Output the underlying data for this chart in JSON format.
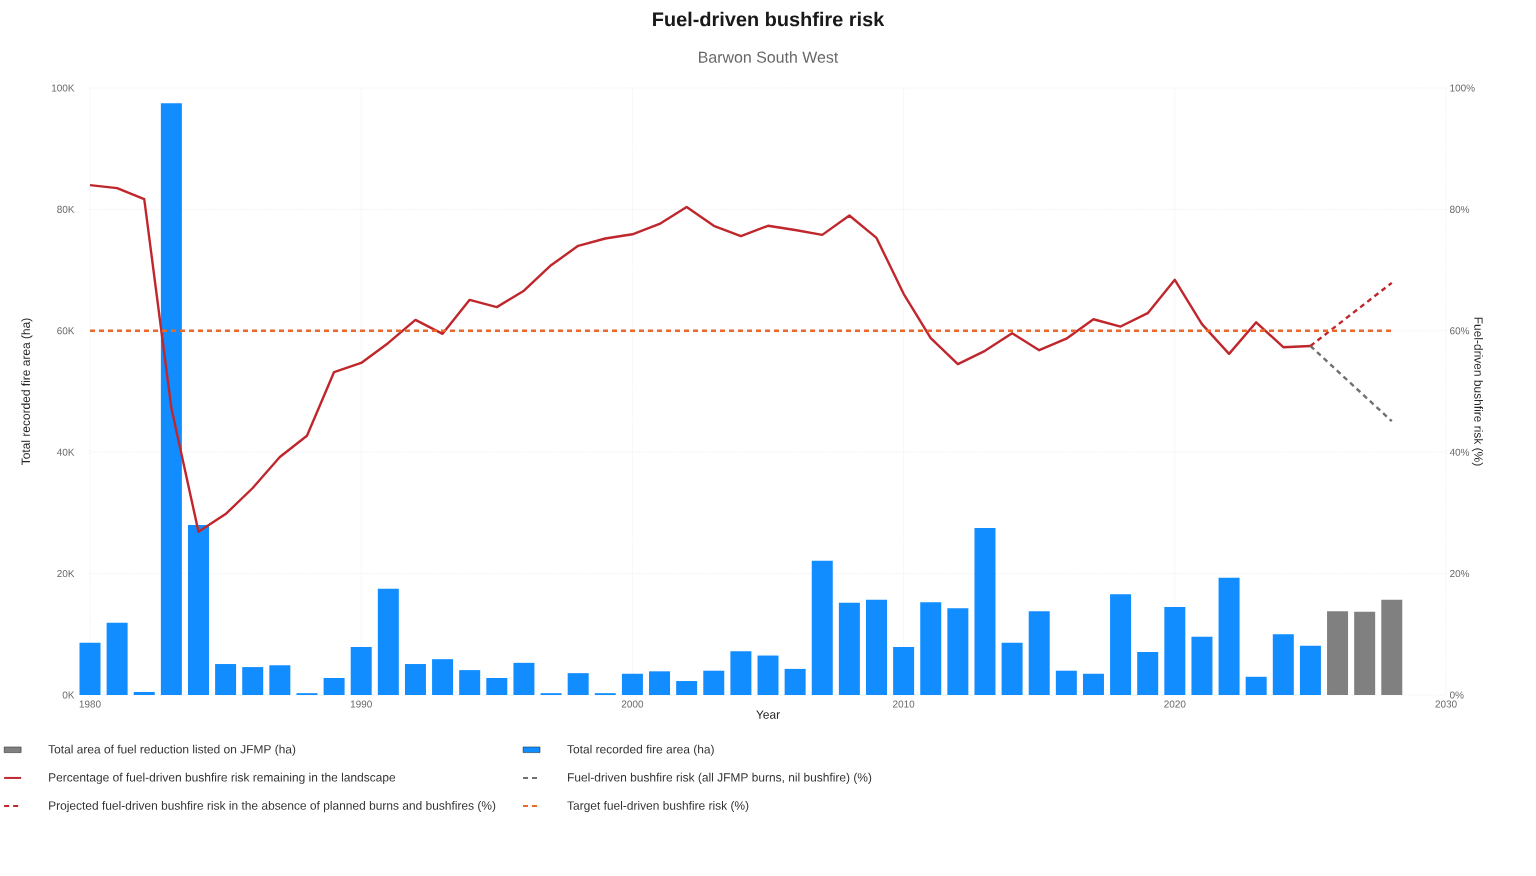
{
  "chart_data": {
    "type": "bar",
    "title": "Fuel-driven bushfire risk",
    "subtitle": "Barwon South West",
    "xlabel": "Year",
    "ylabel": "Total recorded fire area (ha)",
    "y2label": "Fuel-driven bushfire risk (%)",
    "xlim": [
      1980,
      2030
    ],
    "xticks": [
      1980,
      1990,
      2000,
      2010,
      2020,
      2030
    ],
    "ylim": [
      0,
      100000
    ],
    "yticks": [
      {
        "value": 0,
        "label": "0K"
      },
      {
        "value": 20000,
        "label": "20K"
      },
      {
        "value": 40000,
        "label": "40K"
      },
      {
        "value": 60000,
        "label": "60K"
      },
      {
        "value": 80000,
        "label": "80K"
      },
      {
        "value": 100000,
        "label": "100K"
      }
    ],
    "y2lim": [
      0,
      100
    ],
    "y2ticks": [
      {
        "value": 0,
        "label": "0%"
      },
      {
        "value": 20,
        "label": "20%"
      },
      {
        "value": 40,
        "label": "40%"
      },
      {
        "value": 60,
        "label": "60%"
      },
      {
        "value": 80,
        "label": "80%"
      },
      {
        "value": 100,
        "label": "100%"
      }
    ],
    "grid": true,
    "legend": "bottom",
    "series": [
      {
        "name": "Total area of fuel reduction listed on JFMP (ha)",
        "color": "#808080",
        "x": [
          2026,
          2027,
          2028
        ],
        "values": [
          13800,
          13700,
          15700
        ]
      },
      {
        "name": "Total recorded fire area (ha)",
        "color": "#118dff",
        "x": [
          1980,
          1981,
          1982,
          1983,
          1984,
          1985,
          1986,
          1987,
          1988,
          1989,
          1990,
          1991,
          1992,
          1993,
          1994,
          1995,
          1996,
          1997,
          1998,
          1999,
          2000,
          2001,
          2002,
          2003,
          2004,
          2005,
          2006,
          2007,
          2008,
          2009,
          2010,
          2011,
          2012,
          2013,
          2014,
          2015,
          2016,
          2017,
          2018,
          2019,
          2020,
          2021,
          2022,
          2023,
          2024,
          2025
        ],
        "values": [
          8600,
          11900,
          500,
          97500,
          28000,
          5100,
          4600,
          4900,
          300,
          2800,
          7900,
          17500,
          5100,
          5900,
          4100,
          2800,
          5300,
          300,
          3600,
          300,
          3500,
          3900,
          2300,
          4000,
          7200,
          6500,
          4300,
          22100,
          15200,
          15700,
          7900,
          15300,
          14300,
          27500,
          8600,
          13800,
          4000,
          3500,
          16600,
          7100,
          14500,
          9600,
          19300,
          3000,
          10000,
          8100
        ]
      },
      {
        "name": "Percentage of fuel-driven bushfire risk remaining in the landscape",
        "type": "line",
        "axis": "y2",
        "color": "#c0272d",
        "line_style": "solid",
        "x": [
          1980,
          1981,
          1982,
          1983,
          1984,
          1985,
          1986,
          1987,
          1988,
          1989,
          1990,
          1991,
          1992,
          1993,
          1994,
          1995,
          1996,
          1997,
          1998,
          1999,
          2000,
          2001,
          2002,
          2003,
          2004,
          2005,
          2006,
          2007,
          2008,
          2009,
          2010,
          2011,
          2012,
          2013,
          2014,
          2015,
          2016,
          2017,
          2018,
          2019,
          2020,
          2021,
          2022,
          2023,
          2024,
          2025
        ],
        "values": [
          84.0,
          83.5,
          81.7,
          47.3,
          26.9,
          29.8,
          34.1,
          39.2,
          42.7,
          53.2,
          54.7,
          58.0,
          61.8,
          59.5,
          65.1,
          63.9,
          66.6,
          70.8,
          74.0,
          75.2,
          75.9,
          77.6,
          80.4,
          77.3,
          75.6,
          77.3,
          76.6,
          75.8,
          79.0,
          75.3,
          66.1,
          58.8,
          54.5,
          56.7,
          59.6,
          56.8,
          58.7,
          61.9,
          60.7,
          62.9,
          68.4,
          61.1,
          56.2,
          61.4,
          57.3,
          57.5
        ]
      },
      {
        "name": "Fuel-driven bushfire risk (all JFMP burns, nil bushfire) (%)",
        "type": "line",
        "axis": "y2",
        "color": "#707070",
        "line_style": "dashed",
        "x": [
          2025,
          2028
        ],
        "values": [
          57.5,
          45.1
        ]
      },
      {
        "name": "Projected fuel-driven bushfire risk in the absence of planned burns and bushfires (%)",
        "type": "line",
        "axis": "y2",
        "color": "#c0272d",
        "line_style": "dashed",
        "x": [
          2025,
          2028
        ],
        "values": [
          57.5,
          67.9
        ]
      },
      {
        "name": "Target fuel-driven bushfire risk (%)",
        "type": "line",
        "axis": "y2",
        "color": "#e8692a",
        "line_style": "dashed",
        "x": [
          1980,
          2028
        ],
        "values": [
          60,
          60
        ]
      }
    ]
  }
}
